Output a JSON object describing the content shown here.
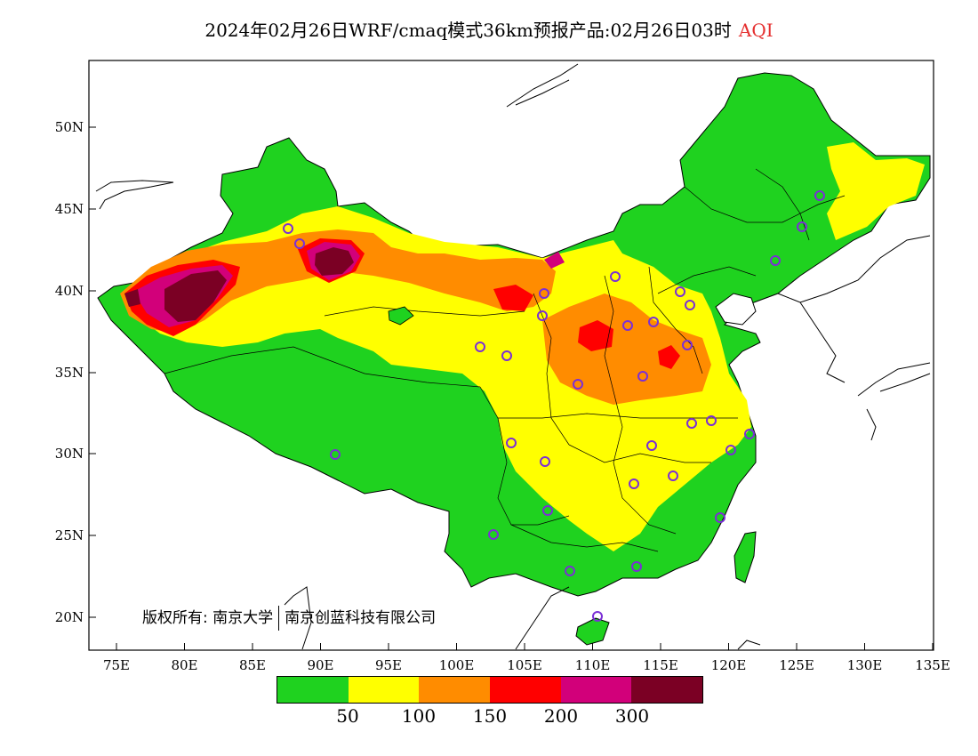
{
  "title": {
    "text": "2024年02月26日WRF/cmaq模式36km预报产品:02月26日03时",
    "variable": "AQI"
  },
  "axes": {
    "lat_labels": [
      "20N",
      "25N",
      "30N",
      "35N",
      "40N",
      "45N",
      "50N"
    ],
    "lon_labels": [
      "75E",
      "80E",
      "85E",
      "90E",
      "95E",
      "100E",
      "105E",
      "110E",
      "115E",
      "120E",
      "125E",
      "130E",
      "135E"
    ]
  },
  "copyright": {
    "prefix": "版权所有:",
    "org1": "南京大学",
    "org2": "南京创蓝科技有限公司"
  },
  "legend": {
    "colors": [
      "#1fd21f",
      "#ffff00",
      "#ff8c00",
      "#ff0000",
      "#d2007a",
      "#7b0024"
    ],
    "labels": [
      "50",
      "100",
      "150",
      "200",
      "300"
    ]
  },
  "station_marker_color": "#7b2fd6"
}
